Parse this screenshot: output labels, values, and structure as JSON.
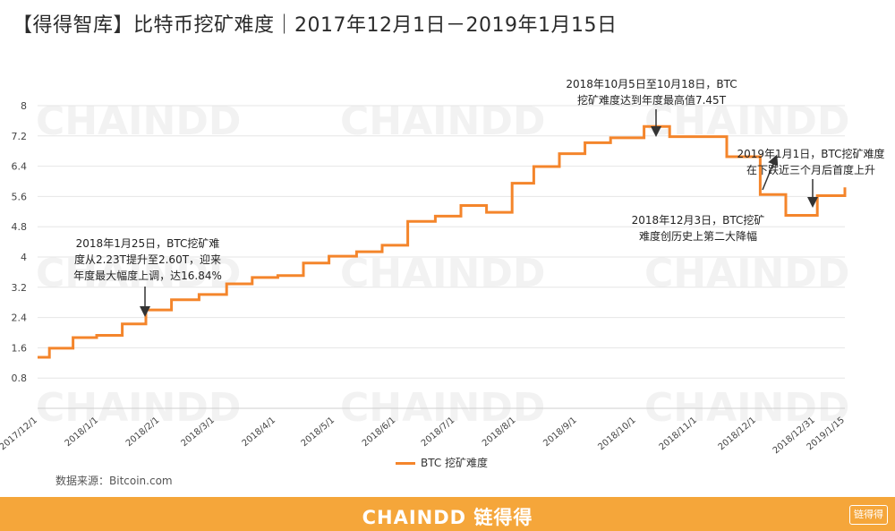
{
  "title": "【得得智库】比特币挖矿难度｜2017年12月1日－2019年1月15日",
  "source": "数据来源：Bitcoin.com",
  "footer": {
    "brand": "CHAINDD 链得得",
    "badge": "链得得"
  },
  "colors": {
    "line": "#f4852b",
    "footer": "#f5a63a",
    "grid": "#e6e6e6"
  },
  "chart_data": {
    "type": "line",
    "xlabel": "",
    "ylabel": "",
    "ylim": [
      0,
      8
    ],
    "yticks": [
      0.8,
      1.6,
      2.4,
      3.2,
      4,
      4.8,
      5.6,
      6.4,
      7.2,
      8
    ],
    "xlim": [
      "2017-12-01",
      "2019-01-15"
    ],
    "xticks": [
      "2017/12/1",
      "2018/1/1",
      "2018/2/1",
      "2018/3/1",
      "2018/4/1",
      "2018/5/1",
      "2018/6/1",
      "2018/7/1",
      "2018/8/1",
      "2018/9/1",
      "2018/10/1",
      "2018/11/1",
      "2018/12/1",
      "2018/12/31",
      "2019/1/15"
    ],
    "grid": true,
    "legend": "bottom-center",
    "series": [
      {
        "name": "BTC 挖矿难度",
        "step": true,
        "x": [
          "2017-12-01",
          "2017-12-07",
          "2017-12-19",
          "2017-12-31",
          "2018-01-13",
          "2018-01-25",
          "2018-02-07",
          "2018-02-21",
          "2018-03-07",
          "2018-03-20",
          "2018-04-02",
          "2018-04-15",
          "2018-04-28",
          "2018-05-12",
          "2018-05-25",
          "2018-06-07",
          "2018-06-21",
          "2018-07-04",
          "2018-07-17",
          "2018-07-30",
          "2018-08-10",
          "2018-08-23",
          "2018-09-05",
          "2018-09-18",
          "2018-10-01",
          "2018-10-05",
          "2018-10-18",
          "2018-11-04",
          "2018-11-16",
          "2018-12-03",
          "2018-12-16",
          "2019-01-01",
          "2019-01-14",
          "2019-01-15"
        ],
        "values": [
          1.35,
          1.59,
          1.87,
          1.93,
          2.23,
          2.6,
          2.87,
          3.01,
          3.29,
          3.46,
          3.51,
          3.84,
          4.02,
          4.14,
          4.31,
          4.94,
          5.08,
          5.36,
          5.18,
          5.95,
          6.39,
          6.73,
          7.02,
          7.15,
          7.15,
          7.45,
          7.18,
          7.18,
          6.65,
          5.65,
          5.1,
          5.62,
          5.62,
          5.84
        ]
      }
    ],
    "annotations": [
      {
        "lines": [
          "2018年1月25日，BTC挖矿难",
          "度从2.23T提升至2.60T，迎来",
          "年度最大幅度上调，达16.84%"
        ],
        "date": "2018-01-25",
        "value": 2.6,
        "arrow": "down"
      },
      {
        "lines": [
          "2018年10月5日至10月18日，BTC",
          "挖矿难度达到年度最高值7.45T"
        ],
        "date": "2018-10-10",
        "value": 7.45,
        "arrow": "down"
      },
      {
        "lines": [
          "2018年12月3日，BTC挖矿",
          "难度创历史上第二大降幅"
        ],
        "date": "2018-12-03",
        "value": 6.4,
        "arrow": "up"
      },
      {
        "lines": [
          "2019年1月1日，BTC挖矿难度",
          "在下跌近三个月后首度上升"
        ],
        "date": "2019-01-01",
        "value": 5.62,
        "arrow": "down"
      }
    ],
    "watermark": "CHAINDD"
  }
}
